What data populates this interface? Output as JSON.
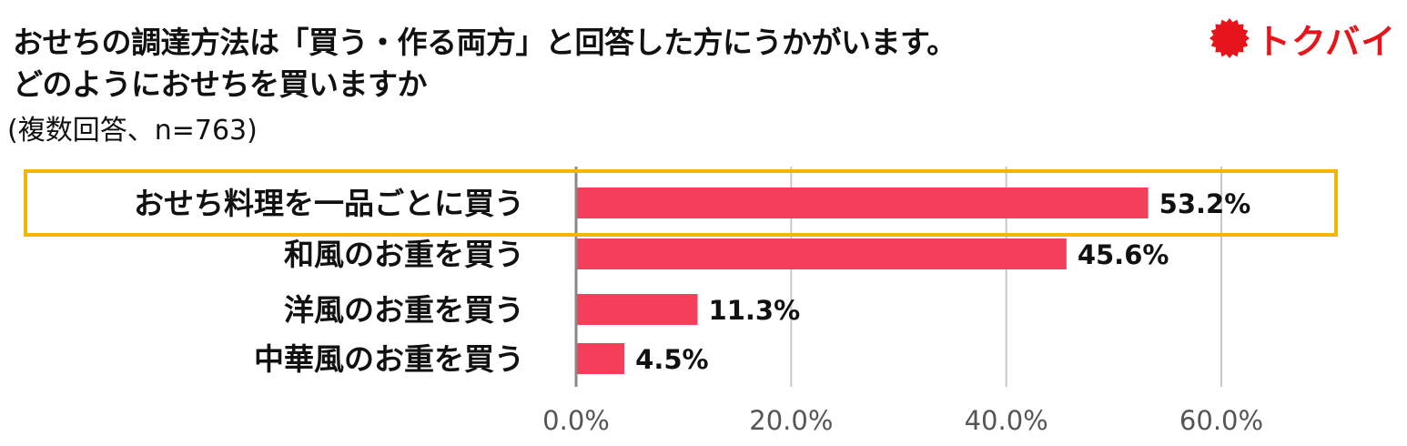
{
  "header": {
    "title_line1": "おせちの調達方法は「買う・作る両方」と回答した方にうかがいます。",
    "title_line2": "どのようにおせちを買いますか",
    "subtitle": "(複数回答、n=763)"
  },
  "logo": {
    "text": "トクバイ",
    "color": "#e8141b"
  },
  "chart_data": {
    "type": "bar",
    "orientation": "horizontal",
    "categories": [
      "おせち料理を一品ごとに買う",
      "和風のお重を買う",
      "洋風のお重を買う",
      "中華風のお重を買う"
    ],
    "values": [
      53.2,
      45.6,
      11.3,
      4.5
    ],
    "value_labels": [
      "53.2%",
      "45.6%",
      "11.3%",
      "4.5%"
    ],
    "xlim": [
      0,
      60
    ],
    "xticks": [
      0,
      20,
      40,
      60
    ],
    "xtick_labels": [
      "0.0%",
      "20.0%",
      "40.0%",
      "60.0%"
    ],
    "grid": true,
    "highlighted_category_index": 0,
    "colors": {
      "bar": "#f43f5a",
      "highlight_border": "#f2b705",
      "grid": "#c8c8c8",
      "axis": "#888888"
    }
  }
}
